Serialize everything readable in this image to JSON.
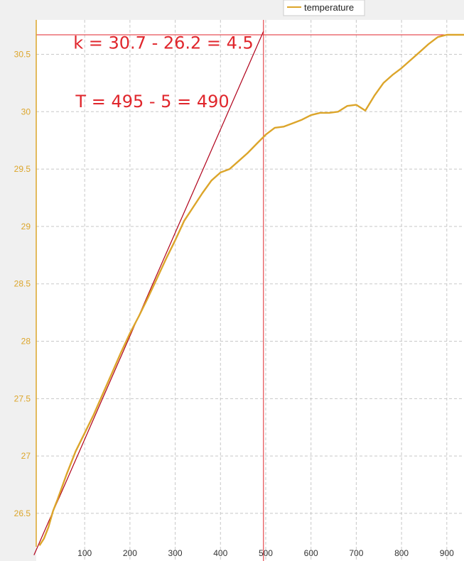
{
  "chart_data": {
    "type": "line",
    "title": "",
    "xlabel": "",
    "ylabel": "",
    "xlim": [
      -7,
      938
    ],
    "ylim": [
      26.085,
      30.8
    ],
    "grid": true,
    "legend": "top-right",
    "x_ticks": [
      100,
      200,
      300,
      400,
      500,
      600,
      700,
      800,
      900
    ],
    "y_ticks": [
      26.5,
      27,
      27.5,
      28,
      28.5,
      29,
      29.5,
      30,
      30.5
    ],
    "series": [
      {
        "name": "temperature",
        "color": "#dca52a",
        "x": [
          0,
          10,
          20,
          30,
          40,
          60,
          80,
          100,
          120,
          140,
          160,
          180,
          200,
          220,
          240,
          260,
          280,
          300,
          320,
          340,
          360,
          380,
          400,
          420,
          440,
          460,
          480,
          500,
          520,
          540,
          560,
          580,
          600,
          620,
          640,
          660,
          680,
          700,
          720,
          740,
          760,
          780,
          800,
          820,
          840,
          860,
          880,
          900,
          920,
          938
        ],
        "y": [
          26.22,
          26.28,
          26.38,
          26.52,
          26.62,
          26.84,
          27.04,
          27.2,
          27.36,
          27.54,
          27.72,
          27.9,
          28.07,
          28.22,
          28.38,
          28.55,
          28.72,
          28.88,
          29.05,
          29.17,
          29.29,
          29.4,
          29.47,
          29.5,
          29.57,
          29.64,
          29.72,
          29.8,
          29.86,
          29.87,
          29.9,
          29.93,
          29.97,
          29.99,
          29.99,
          30.0,
          30.05,
          30.06,
          30.01,
          30.14,
          30.25,
          30.32,
          30.38,
          30.45,
          30.52,
          30.59,
          30.65,
          30.67,
          30.67,
          30.67
        ]
      }
    ],
    "reference_lines": [
      {
        "type": "tangent",
        "x": [
          -5,
          495
        ],
        "y": [
          26.2,
          30.7
        ],
        "color": "#b0001a"
      },
      {
        "type": "horizontal",
        "y": 30.67,
        "color": "#e0262c"
      },
      {
        "type": "vertical",
        "x": 495,
        "color": "#e0262c"
      }
    ],
    "annotations": [
      {
        "text": "k = 30.7 - 26.2 = 4.5",
        "x": 75,
        "y": 30.55
      },
      {
        "text": "T = 495 - 5 = 490",
        "x": 80,
        "y": 30.04
      }
    ]
  }
}
